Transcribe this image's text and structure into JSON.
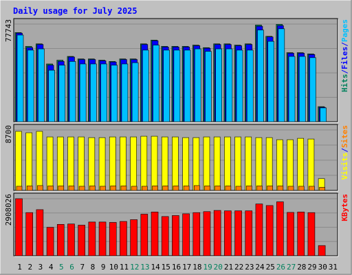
{
  "chart_data": {
    "type": "bar",
    "title": "Daily usage for July 2025",
    "colors": {
      "background": "#c0c0c0",
      "plot_background": "#a8a8a8",
      "title": "#0000ff",
      "hits": "#00805c",
      "files": "#0000ff",
      "pages": "#00c0ff",
      "visits": "#ffff00",
      "sites": "#ff8000",
      "kbytes": "#ff0000",
      "weekend_day": "#00805c",
      "weekday_day": "#000000"
    },
    "x": [
      1,
      2,
      3,
      4,
      5,
      6,
      7,
      8,
      9,
      10,
      11,
      12,
      13,
      14,
      15,
      16,
      17,
      18,
      19,
      20,
      21,
      22,
      23,
      24,
      25,
      26,
      27,
      28,
      29,
      30,
      31
    ],
    "x_labels": [
      "1",
      "2",
      "3",
      "4",
      "5",
      "6",
      "7",
      "8",
      "9",
      "10",
      "11",
      "12",
      "13",
      "14",
      "15",
      "16",
      "17",
      "18",
      "19",
      "20",
      "21",
      "22",
      "23",
      "24",
      "25",
      "26",
      "27",
      "28",
      "29",
      "30",
      "31"
    ],
    "weekend_days": [
      5,
      6,
      12,
      13,
      19,
      20,
      26,
      27
    ],
    "panels": [
      {
        "name": "hits-files-pages",
        "ymax_label": "77743",
        "ymax": 77743,
        "label_parts": [
          {
            "text": "Hits",
            "color_key": "hits"
          },
          {
            "text": "/",
            "color_key": "files"
          },
          {
            "text": "Files",
            "color_key": "files"
          },
          {
            "text": "/",
            "color_key": "files"
          },
          {
            "text": "Pages",
            "color_key": "pages"
          }
        ],
        "series": [
          {
            "name": "Hits",
            "color_key": "hits",
            "values": [
              71000,
              60000,
              62000,
              46000,
              49000,
              52000,
              50000,
              50000,
              49000,
              48000,
              50000,
              50000,
              62000,
              65000,
              60000,
              60000,
              60000,
              61000,
              59000,
              62000,
              62000,
              61000,
              62000,
              77000,
              68000,
              77500,
              55000,
              55000,
              54000,
              12000,
              0
            ]
          },
          {
            "name": "Files",
            "color_key": "files",
            "values": [
              70500,
              59000,
              61500,
              45000,
              48000,
              51500,
              49500,
              49500,
              48500,
              47500,
              49500,
              49500,
              61500,
              64500,
              59500,
              59500,
              59500,
              60500,
              58500,
              61500,
              61500,
              60500,
              61500,
              76000,
              67500,
              76500,
              54500,
              54500,
              53500,
              11500,
              0
            ]
          },
          {
            "name": "Pages",
            "color_key": "pages",
            "values": [
              69000,
              57000,
              58000,
              41000,
              45000,
              48000,
              46000,
              46000,
              46000,
              45000,
              46000,
              47000,
              57000,
              61000,
              57000,
              57000,
              57000,
              58000,
              56000,
              58000,
              58000,
              57000,
              57000,
              73000,
              64000,
              74000,
              52000,
              52000,
              51000,
              11000,
              0
            ]
          }
        ]
      },
      {
        "name": "visits-sites",
        "ymax_label": "8700",
        "ymax": 8700,
        "label_parts": [
          {
            "text": "Visits",
            "color_key": "visits"
          },
          {
            "text": "/",
            "color_key": "files"
          },
          {
            "text": "Sites",
            "color_key": "sites"
          }
        ],
        "series": [
          {
            "name": "Visits",
            "color_key": "visits",
            "values": [
              8500,
              8300,
              8500,
              7700,
              7700,
              7700,
              7700,
              7600,
              7600,
              7700,
              7700,
              7700,
              7800,
              7800,
              7700,
              7700,
              7600,
              7600,
              7700,
              7700,
              7700,
              7700,
              7700,
              7600,
              7600,
              7300,
              7300,
              7500,
              7400,
              1700,
              0
            ]
          },
          {
            "name": "Sites",
            "color_key": "sites",
            "values": [
              600,
              650,
              700,
              650,
              650,
              650,
              600,
              650,
              600,
              650,
              650,
              600,
              600,
              650,
              650,
              650,
              650,
              700,
              650,
              650,
              650,
              600,
              650,
              650,
              650,
              650,
              600,
              600,
              600,
              450,
              0
            ]
          }
        ]
      },
      {
        "name": "kbytes",
        "ymax_label": "2908026",
        "ymax": 2908026,
        "label_parts": [
          {
            "text": "KBytes",
            "color_key": "kbytes"
          }
        ],
        "series": [
          {
            "name": "KBytes",
            "color_key": "kbytes",
            "values": [
              2908026,
              2200000,
              2350000,
              1450000,
              1600000,
              1620000,
              1560000,
              1720000,
              1720000,
              1700000,
              1750000,
              1840000,
              2120000,
              2230000,
              2000000,
              2050000,
              2140000,
              2200000,
              2250000,
              2310000,
              2290000,
              2290000,
              2290000,
              2640000,
              2560000,
              2750000,
              2210000,
              2230000,
              2200000,
              520000,
              0
            ]
          }
        ]
      }
    ]
  }
}
